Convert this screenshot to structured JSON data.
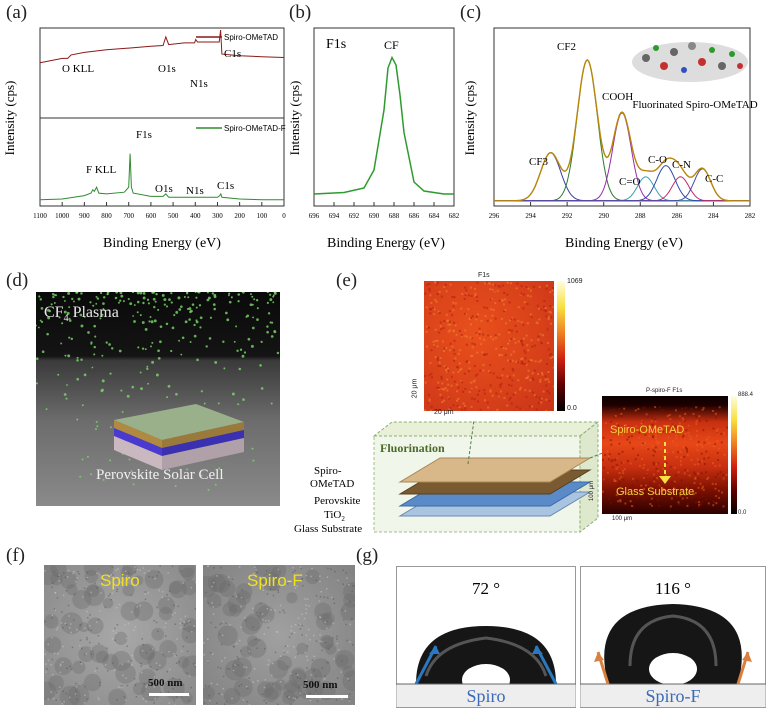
{
  "panels": {
    "a": "(a)",
    "b": "(b)",
    "c": "(c)",
    "d": "(d)",
    "e": "(e)",
    "f": "(f)",
    "g": "(g)"
  },
  "chart_data": [
    {
      "id": "a",
      "type": "line",
      "xlabel": "Binding Energy (eV)",
      "ylabel": "Intensity (cps)",
      "xlim": [
        1100,
        0
      ],
      "xticks": [
        1100,
        1000,
        900,
        800,
        700,
        600,
        500,
        400,
        300,
        200,
        100,
        0
      ],
      "series": [
        {
          "name": "Spiro-OMeTAD",
          "color": "#8b1a1a",
          "x": [
            1100,
            1000,
            975,
            960,
            900,
            800,
            700,
            600,
            545,
            533,
            520,
            450,
            403,
            398,
            390,
            320,
            292,
            286,
            280,
            200,
            100,
            0
          ],
          "y": [
            0.62,
            0.67,
            0.67,
            0.71,
            0.74,
            0.77,
            0.79,
            0.81,
            0.82,
            0.92,
            0.83,
            0.85,
            0.85,
            0.89,
            0.86,
            0.86,
            0.86,
            1.0,
            0.72,
            0.7,
            0.69,
            0.68
          ]
        },
        {
          "name": "Spiro-OMeTAD-F",
          "color": "#2e8b2e",
          "x": [
            1100,
            1000,
            900,
            870,
            862,
            855,
            845,
            835,
            800,
            720,
            700,
            694,
            688,
            680,
            600,
            545,
            533,
            520,
            450,
            400,
            300,
            290,
            285,
            280,
            200,
            100,
            0
          ],
          "y": [
            0.05,
            0.06,
            0.1,
            0.13,
            0.17,
            0.15,
            0.2,
            0.13,
            0.12,
            0.14,
            0.2,
            0.6,
            0.2,
            0.13,
            0.09,
            0.09,
            0.12,
            0.08,
            0.08,
            0.08,
            0.08,
            0.1,
            0.12,
            0.08,
            0.06,
            0.05,
            0.05
          ]
        }
      ],
      "annotations": [
        "O KLL",
        "O1s",
        "N1s",
        "C1s",
        "F KLL",
        "F1s",
        "O1s",
        "N1s",
        "C1s"
      ]
    },
    {
      "id": "b",
      "type": "line",
      "title": "F1s",
      "xlabel": "Binding Energy (eV)",
      "ylabel": "Intensity (cps)",
      "xlim": [
        696,
        682
      ],
      "xticks": [
        696,
        694,
        692,
        690,
        688,
        686,
        684,
        682
      ],
      "series": [
        {
          "name": "CF",
          "color": "#2e9b2e",
          "x": [
            696,
            693,
            691,
            690,
            689,
            688.6,
            688.2,
            687.8,
            687.4,
            687,
            686,
            685,
            683,
            682
          ],
          "y": [
            0.04,
            0.05,
            0.08,
            0.2,
            0.6,
            0.88,
            0.95,
            0.9,
            0.7,
            0.45,
            0.12,
            0.06,
            0.04,
            0.04
          ]
        }
      ],
      "annotations": [
        "CF"
      ]
    },
    {
      "id": "c",
      "type": "line",
      "xlabel": "Binding Energy (eV)",
      "ylabel": "Intensity (cps)",
      "xlim": [
        296,
        282
      ],
      "xticks": [
        296,
        294,
        292,
        290,
        288,
        286,
        284,
        282
      ],
      "peaks": [
        {
          "label": "CF3",
          "center": 292.9,
          "height": 0.3,
          "width": 0.55,
          "color": "#3a3aa8"
        },
        {
          "label": "CF2",
          "center": 290.9,
          "height": 0.88,
          "width": 0.55,
          "color": "#2a7a2a"
        },
        {
          "label": "COOH",
          "center": 289.0,
          "height": 0.55,
          "width": 0.5,
          "color": "#9a2ab0"
        },
        {
          "label": "C=O",
          "center": 287.7,
          "height": 0.15,
          "width": 0.45,
          "color": "#3aa0b0"
        },
        {
          "label": "C-O",
          "center": 286.6,
          "height": 0.22,
          "width": 0.5,
          "color": "#2a4aa8"
        },
        {
          "label": "C-N",
          "center": 285.8,
          "height": 0.15,
          "width": 0.45,
          "color": "#c02a6a"
        },
        {
          "label": "C-C",
          "center": 284.6,
          "height": 0.2,
          "width": 0.45,
          "color": "#4a4aa8"
        }
      ],
      "envelope_color": "#b8860b",
      "inset_label": "Fluorinated Spiro-OMeTAD"
    }
  ],
  "panel_d": {
    "title_main": "CF",
    "title_sub": "4",
    "title_tail": " Plasma",
    "caption": "Perovskite Solar Cell"
  },
  "panel_e": {
    "map_top_title": "F1s",
    "map_top_max": "1069",
    "map_top_min": "0.0",
    "map_top_scale_y": "20 μm",
    "map_top_scale_x": "20 μm",
    "stack_title": "Fluorination",
    "layer1_line1": "Spiro-",
    "layer1_line2": "OMeTAD",
    "layer2": "Perovskite",
    "layer3_main": "TiO",
    "layer3_sub": "2",
    "layer4": "Glass Substrate",
    "map_side_title": "P-spiro-F F1s",
    "map_side_max": "888.4",
    "map_side_min": "0.0",
    "map_side_top": "Spiro-OMeTAD",
    "map_side_bottom": "Glass Substrate",
    "map_side_scale_y": "100 μm",
    "map_side_scale_x": "100 μm"
  },
  "panel_f": {
    "left": "Spiro",
    "right": "Spiro-F",
    "scale_left": "500 nm",
    "scale_right": "500 nm"
  },
  "panel_g": {
    "left_angle": "72 °",
    "right_angle": "116 °",
    "left_label": "Spiro",
    "right_label": "Spiro-F"
  }
}
